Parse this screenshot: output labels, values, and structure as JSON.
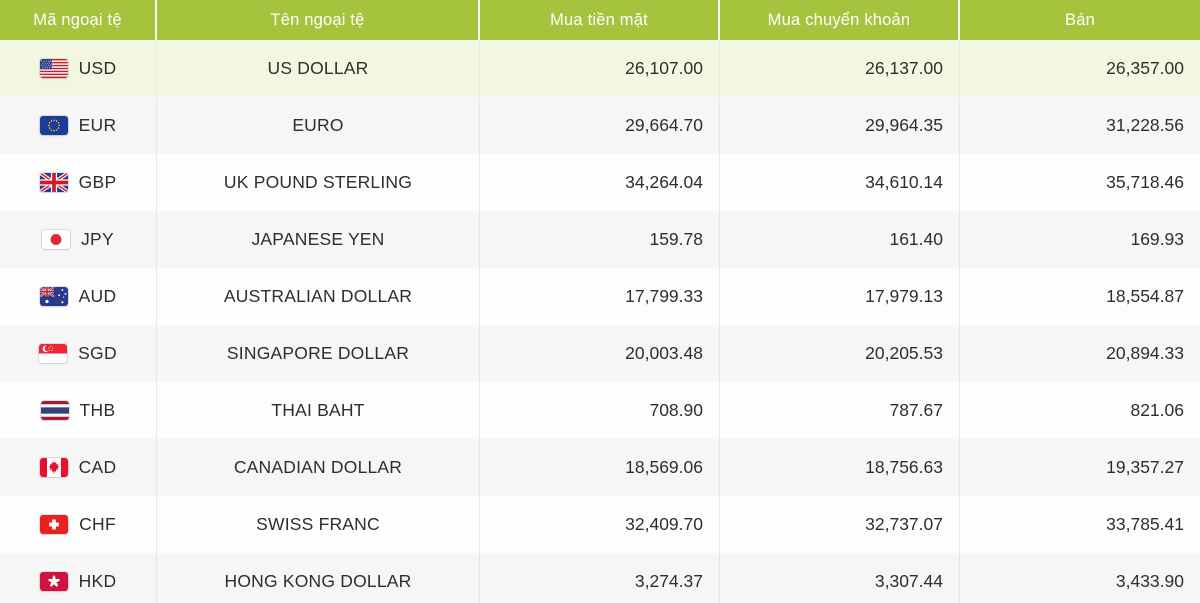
{
  "colors": {
    "header_bg": "#a6c33e",
    "header_text": "#ffffff",
    "row_highlight": "#f2f7e1",
    "row_alt": "#f6f6f7",
    "row_white": "#fdfdfe",
    "body_text": "#2e2e2e",
    "divider": "#e8e8ea"
  },
  "table": {
    "columns": [
      {
        "key": "code",
        "label": "Mã ngoại tệ"
      },
      {
        "key": "name",
        "label": "Tên ngoại tệ"
      },
      {
        "key": "cash_buy",
        "label": "Mua tiền mặt"
      },
      {
        "key": "transfer_buy",
        "label": "Mua chuyển khoản"
      },
      {
        "key": "sell",
        "label": "Bán"
      }
    ],
    "rows": [
      {
        "flag": "us",
        "code": "USD",
        "name": "US DOLLAR",
        "cash_buy": "26,107.00",
        "transfer_buy": "26,137.00",
        "sell": "26,357.00",
        "highlight": true
      },
      {
        "flag": "eu",
        "code": "EUR",
        "name": "EURO",
        "cash_buy": "29,664.70",
        "transfer_buy": "29,964.35",
        "sell": "31,228.56"
      },
      {
        "flag": "gb",
        "code": "GBP",
        "name": "UK POUND STERLING",
        "cash_buy": "34,264.04",
        "transfer_buy": "34,610.14",
        "sell": "35,718.46"
      },
      {
        "flag": "jp",
        "code": "JPY",
        "name": "JAPANESE YEN",
        "cash_buy": "159.78",
        "transfer_buy": "161.40",
        "sell": "169.93"
      },
      {
        "flag": "au",
        "code": "AUD",
        "name": "AUSTRALIAN DOLLAR",
        "cash_buy": "17,799.33",
        "transfer_buy": "17,979.13",
        "sell": "18,554.87"
      },
      {
        "flag": "sg",
        "code": "SGD",
        "name": "SINGAPORE DOLLAR",
        "cash_buy": "20,003.48",
        "transfer_buy": "20,205.53",
        "sell": "20,894.33"
      },
      {
        "flag": "th",
        "code": "THB",
        "name": "THAI BAHT",
        "cash_buy": "708.90",
        "transfer_buy": "787.67",
        "sell": "821.06"
      },
      {
        "flag": "ca",
        "code": "CAD",
        "name": "CANADIAN DOLLAR",
        "cash_buy": "18,569.06",
        "transfer_buy": "18,756.63",
        "sell": "19,357.27"
      },
      {
        "flag": "ch",
        "code": "CHF",
        "name": "SWISS FRANC",
        "cash_buy": "32,409.70",
        "transfer_buy": "32,737.07",
        "sell": "33,785.41"
      },
      {
        "flag": "hk",
        "code": "HKD",
        "name": "HONG KONG DOLLAR",
        "cash_buy": "3,274.37",
        "transfer_buy": "3,307.44",
        "sell": "3,433.90"
      }
    ]
  }
}
